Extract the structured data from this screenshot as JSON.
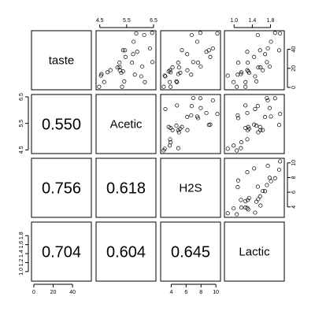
{
  "chart_data": {
    "type": "scatter",
    "variables": [
      "taste",
      "Acetic",
      "H2S",
      "Lactic"
    ],
    "correlations": [
      {
        "row": 1,
        "col": 0,
        "value": "0.550"
      },
      {
        "row": 2,
        "col": 0,
        "value": "0.756"
      },
      {
        "row": 2,
        "col": 1,
        "value": "0.618"
      },
      {
        "row": 3,
        "col": 0,
        "value": "0.704"
      },
      {
        "row": 3,
        "col": 1,
        "value": "0.604"
      },
      {
        "row": 3,
        "col": 2,
        "value": "0.645"
      }
    ],
    "axes": [
      {
        "name": "taste",
        "range": [
          0,
          57
        ],
        "ticks": [
          0,
          20,
          40
        ],
        "tick_labels": [
          "0",
          "20",
          "40"
        ],
        "side": "bottom"
      },
      {
        "name": "Acetic",
        "range": [
          4.45,
          6.5
        ],
        "ticks": [
          4.5,
          5.5,
          6.5
        ],
        "tick_labels": [
          "4.5",
          "5.5",
          "6.5"
        ],
        "side": "top"
      },
      {
        "name": "H2S",
        "range": [
          2.9,
          10.3
        ],
        "ticks": [
          4,
          6,
          8,
          10
        ],
        "tick_labels": [
          "4",
          "6",
          "8",
          "10"
        ],
        "side": "bottom"
      },
      {
        "name": "Lactic",
        "range": [
          0.84,
          2.05
        ],
        "ticks": [
          1.0,
          1.4,
          1.8
        ],
        "tick_labels": [
          "1.0",
          "1.4",
          "1.8"
        ],
        "side": "top"
      }
    ],
    "left_axes": [
      {
        "row": 1,
        "ticks": [
          4.5,
          5.5,
          6.5
        ],
        "tick_labels": [
          "4.5",
          "5.5",
          "6.5"
        ]
      },
      {
        "row": 3,
        "ticks": [
          1.0,
          1.2,
          1.4,
          1.6,
          1.8
        ],
        "tick_labels": [
          "1.0",
          "1.2",
          "1.4",
          "1.6",
          "1.8"
        ]
      }
    ],
    "right_axes": [
      {
        "row": 0,
        "ticks": [
          0,
          20,
          40
        ],
        "tick_labels": [
          "0",
          "20",
          "40"
        ]
      },
      {
        "row": 2,
        "ticks": [
          4,
          6,
          8,
          10
        ],
        "tick_labels": [
          "4",
          "6",
          "8",
          "10"
        ]
      }
    ],
    "observations": [
      {
        "taste": 12.3,
        "Acetic": 4.543,
        "H2S": 3.135,
        "Lactic": 0.86
      },
      {
        "taste": 20.9,
        "Acetic": 5.159,
        "H2S": 5.043,
        "Lactic": 1.53
      },
      {
        "taste": 39.0,
        "Acetic": 5.366,
        "H2S": 5.438,
        "Lactic": 1.57
      },
      {
        "taste": 47.9,
        "Acetic": 5.759,
        "H2S": 7.496,
        "Lactic": 1.81
      },
      {
        "taste": 5.6,
        "Acetic": 4.663,
        "H2S": 3.807,
        "Lactic": 0.99
      },
      {
        "taste": 25.9,
        "Acetic": 5.697,
        "H2S": 7.601,
        "Lactic": 1.09
      },
      {
        "taste": 37.3,
        "Acetic": 5.892,
        "H2S": 8.726,
        "Lactic": 1.29
      },
      {
        "taste": 21.9,
        "Acetic": 6.078,
        "H2S": 7.966,
        "Lactic": 1.78
      },
      {
        "taste": 18.1,
        "Acetic": 4.898,
        "H2S": 3.85,
        "Lactic": 1.29
      },
      {
        "taste": 21.0,
        "Acetic": 5.242,
        "H2S": 4.174,
        "Lactic": 1.58
      },
      {
        "taste": 34.9,
        "Acetic": 5.74,
        "H2S": 6.142,
        "Lactic": 1.68
      },
      {
        "taste": 57.2,
        "Acetic": 6.446,
        "H2S": 7.908,
        "Lactic": 1.9
      },
      {
        "taste": 0.7,
        "Acetic": 4.477,
        "H2S": 2.996,
        "Lactic": 1.06
      },
      {
        "taste": 25.9,
        "Acetic": 5.236,
        "H2S": 4.942,
        "Lactic": 1.3
      },
      {
        "taste": 54.9,
        "Acetic": 6.151,
        "H2S": 6.752,
        "Lactic": 1.52
      },
      {
        "taste": 40.9,
        "Acetic": 6.365,
        "H2S": 9.588,
        "Lactic": 1.74
      },
      {
        "taste": 15.9,
        "Acetic": 4.787,
        "H2S": 3.912,
        "Lactic": 1.16
      },
      {
        "taste": 6.4,
        "Acetic": 5.412,
        "H2S": 4.7,
        "Lactic": 1.49
      },
      {
        "taste": 18.0,
        "Acetic": 5.247,
        "H2S": 6.174,
        "Lactic": 1.63
      },
      {
        "taste": 38.9,
        "Acetic": 5.438,
        "H2S": 9.064,
        "Lactic": 1.99
      },
      {
        "taste": 14.0,
        "Acetic": 4.564,
        "H2S": 4.949,
        "Lactic": 1.15
      },
      {
        "taste": 15.2,
        "Acetic": 5.298,
        "H2S": 5.22,
        "Lactic": 1.33
      },
      {
        "taste": 32.0,
        "Acetic": 5.455,
        "H2S": 9.242,
        "Lactic": 1.44
      },
      {
        "taste": 56.7,
        "Acetic": 5.855,
        "H2S": 10.199,
        "Lactic": 2.01
      },
      {
        "taste": 16.8,
        "Acetic": 5.366,
        "H2S": 3.664,
        "Lactic": 1.31
      },
      {
        "taste": 11.6,
        "Acetic": 6.043,
        "H2S": 3.219,
        "Lactic": 1.46
      },
      {
        "taste": 26.5,
        "Acetic": 6.458,
        "H2S": 6.962,
        "Lactic": 1.72
      },
      {
        "taste": 0.7,
        "Acetic": 5.328,
        "H2S": 3.912,
        "Lactic": 1.25
      },
      {
        "taste": 13.4,
        "Acetic": 5.802,
        "H2S": 6.685,
        "Lactic": 1.08
      },
      {
        "taste": 5.5,
        "Acetic": 6.176,
        "H2S": 4.787,
        "Lactic": 1.25
      }
    ]
  }
}
